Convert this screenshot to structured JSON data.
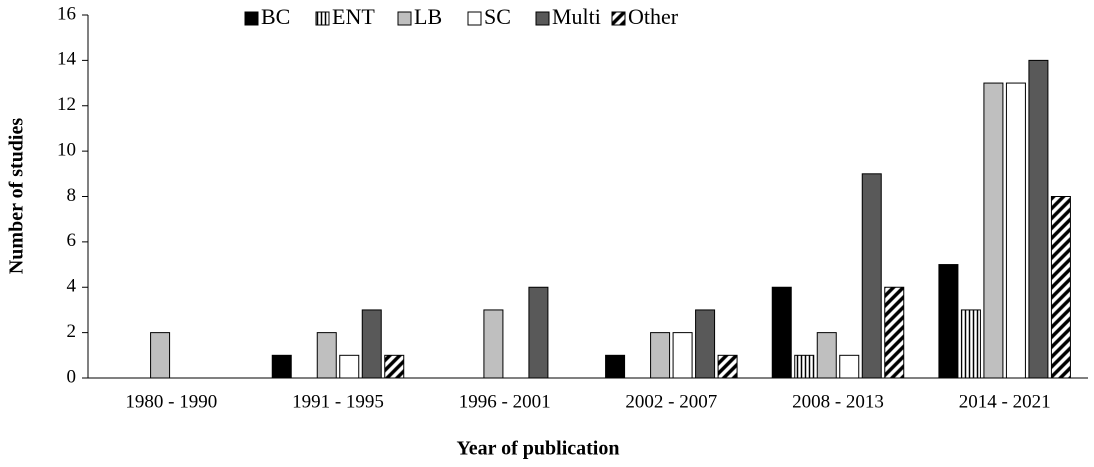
{
  "chart_data": {
    "type": "bar",
    "x_label": "Year of publication",
    "y_label": "Number of studies",
    "categories": [
      "1980 - 1990",
      "1991 - 1995",
      "1996 - 2001",
      "2002 - 2007",
      "2008 - 2013",
      "2014 - 2021"
    ],
    "series": [
      {
        "name": "BC",
        "color": "#000000",
        "values": [
          0,
          1,
          0,
          1,
          4,
          5
        ]
      },
      {
        "name": "ENT",
        "color": "#ffffff",
        "hatch": "vertical",
        "values": [
          0,
          0,
          0,
          0,
          1,
          3
        ]
      },
      {
        "name": "LB",
        "color": "#bfbfbf",
        "values": [
          2,
          2,
          3,
          2,
          2,
          13
        ]
      },
      {
        "name": "SC",
        "color": "#ffffff",
        "values": [
          0,
          1,
          0,
          2,
          1,
          13
        ]
      },
      {
        "name": "Multi",
        "color": "#595959",
        "values": [
          0,
          3,
          4,
          3,
          9,
          14
        ]
      },
      {
        "name": "Other",
        "color": "#ffffff",
        "hatch": "diagonal",
        "values": [
          0,
          1,
          0,
          1,
          4,
          8
        ]
      }
    ],
    "ylim": [
      0,
      16
    ],
    "yticks": [
      0,
      2,
      4,
      6,
      8,
      10,
      12,
      14,
      16
    ],
    "grid": false,
    "legend": "upper center"
  }
}
